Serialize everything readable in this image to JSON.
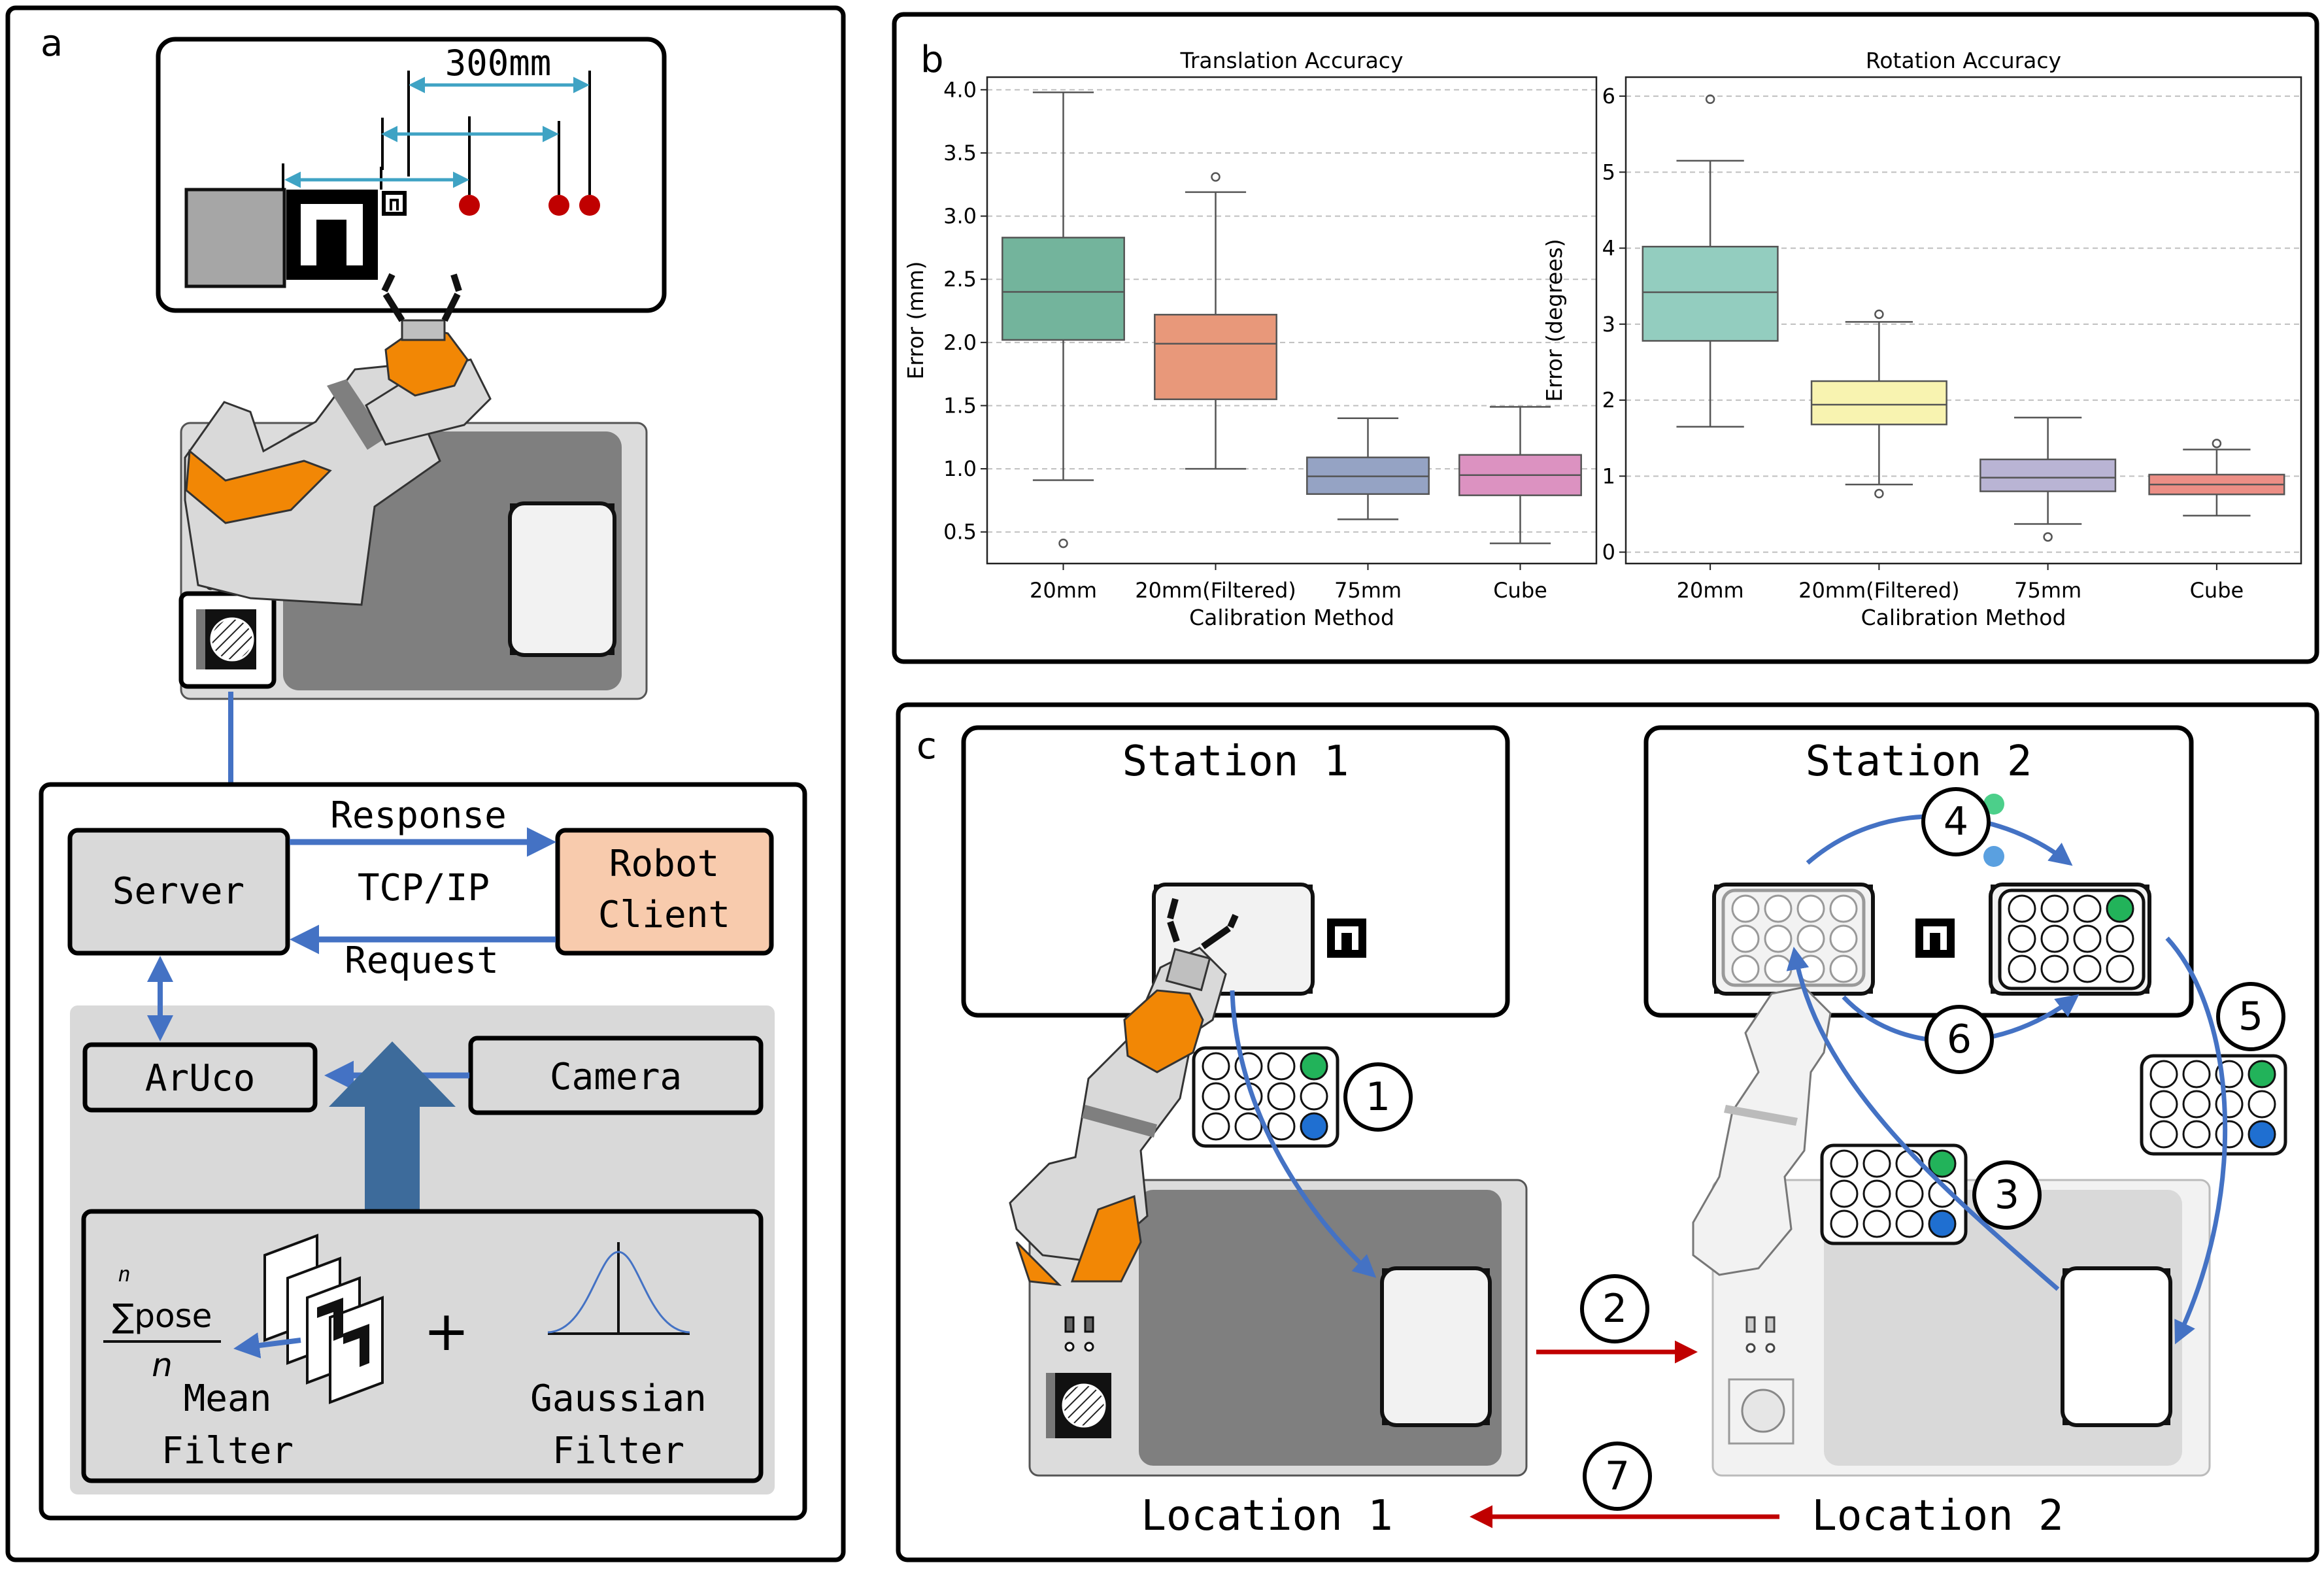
{
  "panel_a": {
    "letter": "a",
    "distance_label": "300mm",
    "server": "Server",
    "response": "Response",
    "tcpip": "TCP/IP",
    "request": "Request",
    "robot_client_line1": "Robot",
    "robot_client_line2": "Client",
    "aruco": "ArUco",
    "camera": "Camera",
    "formula_n": "n",
    "formula_sum": "∑pose",
    "formula_den": "n",
    "plus": "+",
    "mean_filter_line1": "Mean",
    "mean_filter_line2": "Filter",
    "gaussian_filter_line1": "Gaussian",
    "gaussian_filter_line2": "Filter"
  },
  "panel_b": {
    "letter": "b",
    "xlabel": "Calibration Method"
  },
  "panel_c": {
    "letter": "c",
    "station1": "Station 1",
    "station2": "Station 2",
    "location1": "Location 1",
    "location2": "Location 2",
    "steps": [
      "1",
      "2",
      "3",
      "4",
      "5",
      "6",
      "7"
    ]
  },
  "colors": {
    "blue_arrow": "#4472c4",
    "red_arrow": "#c00000",
    "orange": "#f28705",
    "client_fill": "#f8cbad",
    "big_arrow": "#3d6b9b",
    "green_well": "#22b35a",
    "blue_well": "#1f6fd1"
  },
  "chart_data": [
    {
      "type": "box",
      "title": "Translation Accuracy",
      "xlabel": "Calibration Method",
      "ylabel": "Error (mm)",
      "ylim": [
        0.25,
        4.1
      ],
      "yticks": [
        0.5,
        1.0,
        1.5,
        2.0,
        2.5,
        3.0,
        3.5,
        4.0
      ],
      "categories": [
        "20mm",
        "20mm(Filtered)",
        "75mm",
        "Cube"
      ],
      "boxes": [
        {
          "whislo": 0.91,
          "q1": 2.02,
          "med": 2.4,
          "q3": 2.83,
          "whishi": 3.98,
          "fliers": [
            0.41
          ],
          "color": "#73b49c"
        },
        {
          "whislo": 1.0,
          "q1": 1.55,
          "med": 1.99,
          "q3": 2.22,
          "whishi": 3.19,
          "fliers": [
            3.31
          ],
          "color": "#e8987a"
        },
        {
          "whislo": 0.6,
          "q1": 0.8,
          "med": 0.94,
          "q3": 1.09,
          "whishi": 1.4,
          "fliers": [],
          "color": "#95a3c4"
        },
        {
          "whislo": 0.41,
          "q1": 0.79,
          "med": 0.95,
          "q3": 1.11,
          "whishi": 1.49,
          "fliers": [],
          "color": "#dc92c1"
        }
      ],
      "grid": "horizontal dashed"
    },
    {
      "type": "box",
      "title": "Rotation Accuracy",
      "xlabel": "Calibration Method",
      "ylabel": "Error (degrees)",
      "ylim": [
        -0.15,
        6.25
      ],
      "yticks": [
        0,
        1,
        2,
        3,
        4,
        5,
        6
      ],
      "categories": [
        "20mm",
        "20mm(Filtered)",
        "75mm",
        "Cube"
      ],
      "boxes": [
        {
          "whislo": 1.65,
          "q1": 2.78,
          "med": 3.42,
          "q3": 4.02,
          "whishi": 5.15,
          "fliers": [
            5.96
          ],
          "color": "#93cdbf"
        },
        {
          "whislo": 0.89,
          "q1": 1.68,
          "med": 1.94,
          "q3": 2.25,
          "whishi": 3.03,
          "fliers": [
            3.13,
            0.77
          ],
          "color": "#f8f3b0"
        },
        {
          "whislo": 0.37,
          "q1": 0.8,
          "med": 0.98,
          "q3": 1.22,
          "whishi": 1.77,
          "fliers": [
            0.2
          ],
          "color": "#b9b4d4"
        },
        {
          "whislo": 0.48,
          "q1": 0.76,
          "med": 0.89,
          "q3": 1.02,
          "whishi": 1.35,
          "fliers": [
            1.43
          ],
          "color": "#ec8e85"
        }
      ],
      "grid": "horizontal dashed"
    }
  ]
}
